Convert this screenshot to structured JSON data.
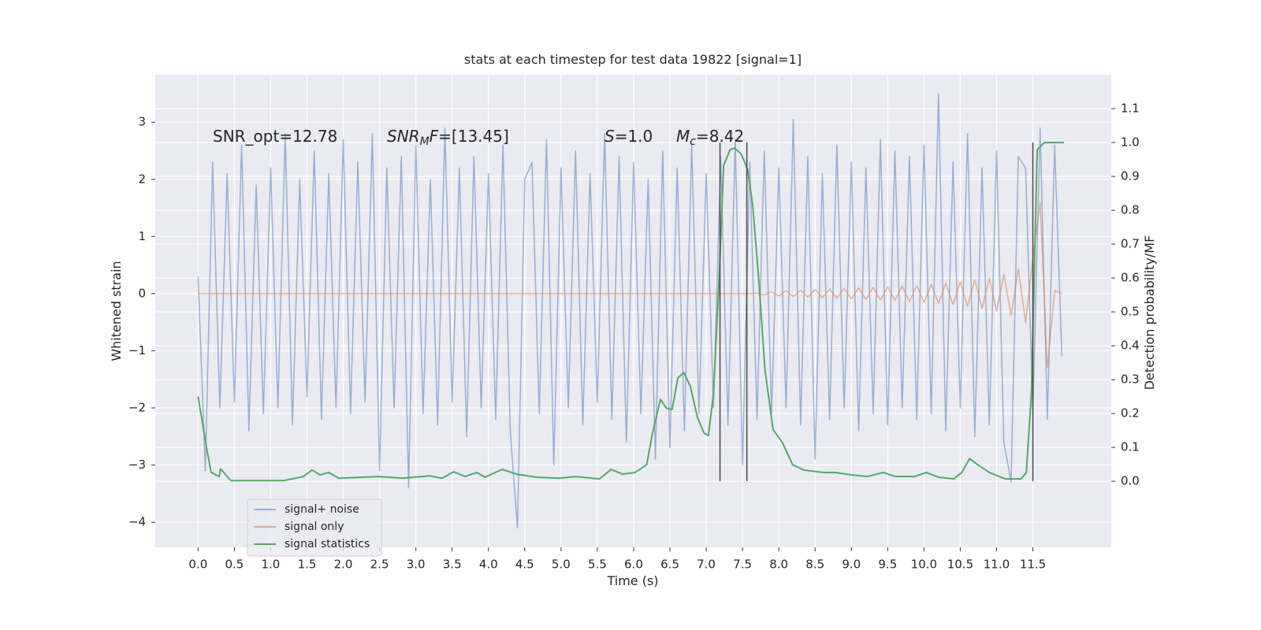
{
  "chart_data": {
    "type": "line",
    "title": "stats at each timestep for test data 19822 [signal=1]",
    "x_label": "Time (s)",
    "y_label": "Whitened strain",
    "y2_label": "Detection probability/MF",
    "grid": true,
    "background": "#eaeaf2",
    "legend": "lower left",
    "xlim": [
      -0.59,
      12.58
    ],
    "ylim": [
      -4.44,
      3.83
    ],
    "y2lim": [
      -0.195,
      1.2
    ],
    "xticks": [
      {
        "value": 0,
        "label": "0.0"
      },
      {
        "value": 0.5,
        "label": "0.5"
      },
      {
        "value": 1,
        "label": "1.0"
      },
      {
        "value": 1.5,
        "label": "1.5"
      },
      {
        "value": 2,
        "label": "2.0"
      },
      {
        "value": 2.5,
        "label": "2.5"
      },
      {
        "value": 3,
        "label": "3.0"
      },
      {
        "value": 3.5,
        "label": "3.5"
      },
      {
        "value": 4,
        "label": "4.0"
      },
      {
        "value": 4.5,
        "label": "4.5"
      },
      {
        "value": 5,
        "label": "5.0"
      },
      {
        "value": 5.5,
        "label": "5.5"
      },
      {
        "value": 6,
        "label": "6.0"
      },
      {
        "value": 6.5,
        "label": "6.5"
      },
      {
        "value": 7,
        "label": "7.0"
      },
      {
        "value": 7.5,
        "label": "7.5"
      },
      {
        "value": 8,
        "label": "8.0"
      },
      {
        "value": 8.5,
        "label": "8.5"
      },
      {
        "value": 9,
        "label": "9.0"
      },
      {
        "value": 9.5,
        "label": "9.5"
      },
      {
        "value": 10,
        "label": "10.0"
      },
      {
        "value": 10.5,
        "label": "10.5"
      },
      {
        "value": 11,
        "label": "11.0"
      },
      {
        "value": 11.5,
        "label": "11.5"
      }
    ],
    "yticks": [
      {
        "value": -4,
        "label": "−4"
      },
      {
        "value": -3,
        "label": "−3"
      },
      {
        "value": -2,
        "label": "−2"
      },
      {
        "value": -1,
        "label": "−1"
      },
      0,
      1,
      2,
      3
    ],
    "y2ticks": [
      {
        "value": 0,
        "label": "0.0"
      },
      {
        "value": 0.1,
        "label": "0.1"
      },
      {
        "value": 0.2,
        "label": "0.2"
      },
      {
        "value": 0.3,
        "label": "0.3"
      },
      {
        "value": 0.4,
        "label": "0.4"
      },
      {
        "value": 0.5,
        "label": "0.5"
      },
      {
        "value": 0.6,
        "label": "0.6"
      },
      {
        "value": 0.7,
        "label": "0.7"
      },
      {
        "value": 0.8,
        "label": "0.8"
      },
      {
        "value": 0.9,
        "label": "0.9"
      },
      {
        "value": 1,
        "label": "1.0"
      },
      {
        "value": 1.1,
        "label": "1.1"
      }
    ],
    "annotations": [
      [
        {
          "text": "SNR_opt=12.78"
        }
      ],
      [
        {
          "text": "SNR",
          "italic": true
        },
        {
          "text": "M",
          "italic": true,
          "sub": true
        },
        {
          "text": "F",
          "italic": true
        },
        {
          "text": "=[13.45]"
        }
      ],
      [
        {
          "text": "S",
          "italic": true
        },
        {
          "text": "=1.0"
        }
      ],
      [
        {
          "text": "M",
          "italic": true
        },
        {
          "text": "c",
          "italic": true,
          "sub": true
        },
        {
          "text": "=8.42"
        }
      ]
    ],
    "vlines": [
      7.19,
      7.56,
      11.5
    ],
    "vline_color": "#4a4a4a",
    "series": [
      {
        "name": "signal+ noise",
        "color": "#4c72b0",
        "opacity": 0.5,
        "x": [
          0.0,
          0.1,
          0.2,
          0.3,
          0.4,
          0.5,
          0.6,
          0.7,
          0.8,
          0.9,
          1.0,
          1.1,
          1.2,
          1.3,
          1.4,
          1.5,
          1.6,
          1.7,
          1.8,
          1.9,
          2.0,
          2.1,
          2.2,
          2.3,
          2.4,
          2.5,
          2.6,
          2.7,
          2.8,
          2.9,
          3.0,
          3.1,
          3.2,
          3.3,
          3.4,
          3.5,
          3.6,
          3.7,
          3.8,
          3.9,
          4.0,
          4.1,
          4.2,
          4.3,
          4.4,
          4.5,
          4.6,
          4.7,
          4.8,
          4.9,
          5.0,
          5.1,
          5.2,
          5.3,
          5.4,
          5.5,
          5.6,
          5.7,
          5.8,
          5.9,
          6.0,
          6.1,
          6.2,
          6.3,
          6.4,
          6.5,
          6.6,
          6.7,
          6.8,
          6.9,
          7.0,
          7.1,
          7.2,
          7.3,
          7.4,
          7.5,
          7.6,
          7.7,
          7.8,
          7.9,
          8.0,
          8.1,
          8.2,
          8.3,
          8.4,
          8.5,
          8.6,
          8.7,
          8.8,
          8.9,
          9.0,
          9.1,
          9.2,
          9.3,
          9.4,
          9.5,
          9.6,
          9.7,
          9.8,
          9.9,
          10.0,
          10.1,
          10.2,
          10.3,
          10.4,
          10.5,
          10.6,
          10.7,
          10.8,
          10.9,
          11.0,
          11.1,
          11.2,
          11.3,
          11.4,
          11.5,
          11.6,
          11.7,
          11.8,
          11.9
        ],
        "values": [
          0.3,
          -3.1,
          2.3,
          -2.0,
          2.1,
          -1.9,
          2.6,
          -2.4,
          1.9,
          -2.1,
          2.2,
          -2.0,
          2.8,
          -2.3,
          2.0,
          -1.8,
          2.5,
          -2.2,
          2.1,
          -2.0,
          2.7,
          -2.1,
          2.3,
          -1.9,
          2.8,
          -3.1,
          2.2,
          -2.0,
          2.4,
          -3.4,
          2.6,
          -2.1,
          2.0,
          -2.3,
          2.9,
          -1.9,
          2.2,
          -2.5,
          2.4,
          -2.0,
          2.1,
          -2.2,
          2.6,
          -2.4,
          -4.1,
          2.0,
          2.3,
          -2.1,
          2.7,
          -3.0,
          2.2,
          -2.0,
          2.5,
          -2.3,
          2.1,
          -1.9,
          2.8,
          -2.2,
          2.4,
          -2.6,
          2.3,
          -2.1,
          2.0,
          -2.9,
          2.5,
          -2.7,
          2.2,
          -2.4,
          2.6,
          -2.1,
          2.1,
          -2.0,
          2.4,
          -2.3,
          2.7,
          -3.0,
          2.3,
          -2.2,
          2.5,
          -2.1,
          2.2,
          -2.0,
          3.05,
          -2.3,
          2.4,
          -2.9,
          2.1,
          -2.2,
          2.6,
          -2.0,
          2.3,
          -2.4,
          2.2,
          -2.1,
          2.7,
          -2.3,
          2.5,
          -2.0,
          2.4,
          -2.2,
          2.6,
          -2.1,
          3.5,
          -2.4,
          2.3,
          -2.0,
          2.8,
          -2.5,
          2.2,
          -2.3,
          2.5,
          -2.6,
          -3.3,
          2.4,
          2.2,
          -2.1,
          2.9,
          -2.2,
          2.6,
          -1.1
        ]
      },
      {
        "name": "signal only",
        "color": "#dd8452",
        "opacity": 0.6,
        "x": [
          0.0,
          7.6,
          7.7,
          7.8,
          7.9,
          8.0,
          8.1,
          8.2,
          8.3,
          8.4,
          8.5,
          8.6,
          8.7,
          8.8,
          8.9,
          9.0,
          9.1,
          9.2,
          9.3,
          9.4,
          9.5,
          9.6,
          9.7,
          9.8,
          9.9,
          10.0,
          10.1,
          10.2,
          10.3,
          10.4,
          10.5,
          10.6,
          10.7,
          10.8,
          10.9,
          11.0,
          11.1,
          11.2,
          11.3,
          11.4,
          11.5,
          11.6,
          11.7,
          11.8,
          11.9
        ],
        "values": [
          0,
          0,
          0.01,
          -0.02,
          0.03,
          -0.04,
          0.05,
          -0.05,
          0.06,
          -0.06,
          0.07,
          -0.07,
          0.08,
          -0.08,
          0.09,
          -0.09,
          0.1,
          -0.1,
          0.11,
          -0.11,
          0.12,
          -0.12,
          0.13,
          -0.14,
          0.14,
          -0.15,
          0.16,
          -0.17,
          0.18,
          -0.19,
          0.2,
          -0.22,
          0.24,
          -0.26,
          0.28,
          -0.31,
          0.34,
          -0.38,
          0.43,
          -0.5,
          0.62,
          1.6,
          -1.3,
          0.05,
          0
        ]
      },
      {
        "name": "signal statistics",
        "color": "#55a868",
        "opacity": 1,
        "axis": "y2",
        "x": [
          0.0,
          0.12,
          0.18,
          0.29,
          0.31,
          0.45,
          0.75,
          1.18,
          1.45,
          1.57,
          1.68,
          1.8,
          1.94,
          2.49,
          2.81,
          3.19,
          3.36,
          3.52,
          3.68,
          3.84,
          3.95,
          4.19,
          4.39,
          4.66,
          4.98,
          5.2,
          5.53,
          5.69,
          5.85,
          6.02,
          6.18,
          6.26,
          6.37,
          6.45,
          6.53,
          6.61,
          6.69,
          6.78,
          6.88,
          6.97,
          7.03,
          7.1,
          7.18,
          7.24,
          7.33,
          7.39,
          7.48,
          7.57,
          7.64,
          7.72,
          7.81,
          7.92,
          8.05,
          8.19,
          8.35,
          8.62,
          8.78,
          9.0,
          9.22,
          9.44,
          9.6,
          9.87,
          10.03,
          10.2,
          10.41,
          10.52,
          10.63,
          10.74,
          10.9,
          11.12,
          11.34,
          11.41,
          11.48,
          11.56,
          11.66,
          11.93
        ],
        "values": [
          0.25,
          0.095,
          0.026,
          0.014,
          0.037,
          0.002,
          0.002,
          0.002,
          0.014,
          0.033,
          0.019,
          0.026,
          0.009,
          0.014,
          0.009,
          0.016,
          0.009,
          0.028,
          0.014,
          0.026,
          0.012,
          0.035,
          0.021,
          0.012,
          0.009,
          0.014,
          0.007,
          0.035,
          0.021,
          0.026,
          0.049,
          0.142,
          0.242,
          0.216,
          0.212,
          0.305,
          0.321,
          0.281,
          0.188,
          0.142,
          0.135,
          0.258,
          0.607,
          0.933,
          0.979,
          0.984,
          0.967,
          0.921,
          0.816,
          0.607,
          0.328,
          0.153,
          0.114,
          0.049,
          0.033,
          0.026,
          0.026,
          0.019,
          0.014,
          0.026,
          0.014,
          0.014,
          0.026,
          0.012,
          0.007,
          0.026,
          0.067,
          0.049,
          0.026,
          0.007,
          0.007,
          0.026,
          0.258,
          0.979,
          1.0,
          1.0
        ]
      }
    ]
  }
}
